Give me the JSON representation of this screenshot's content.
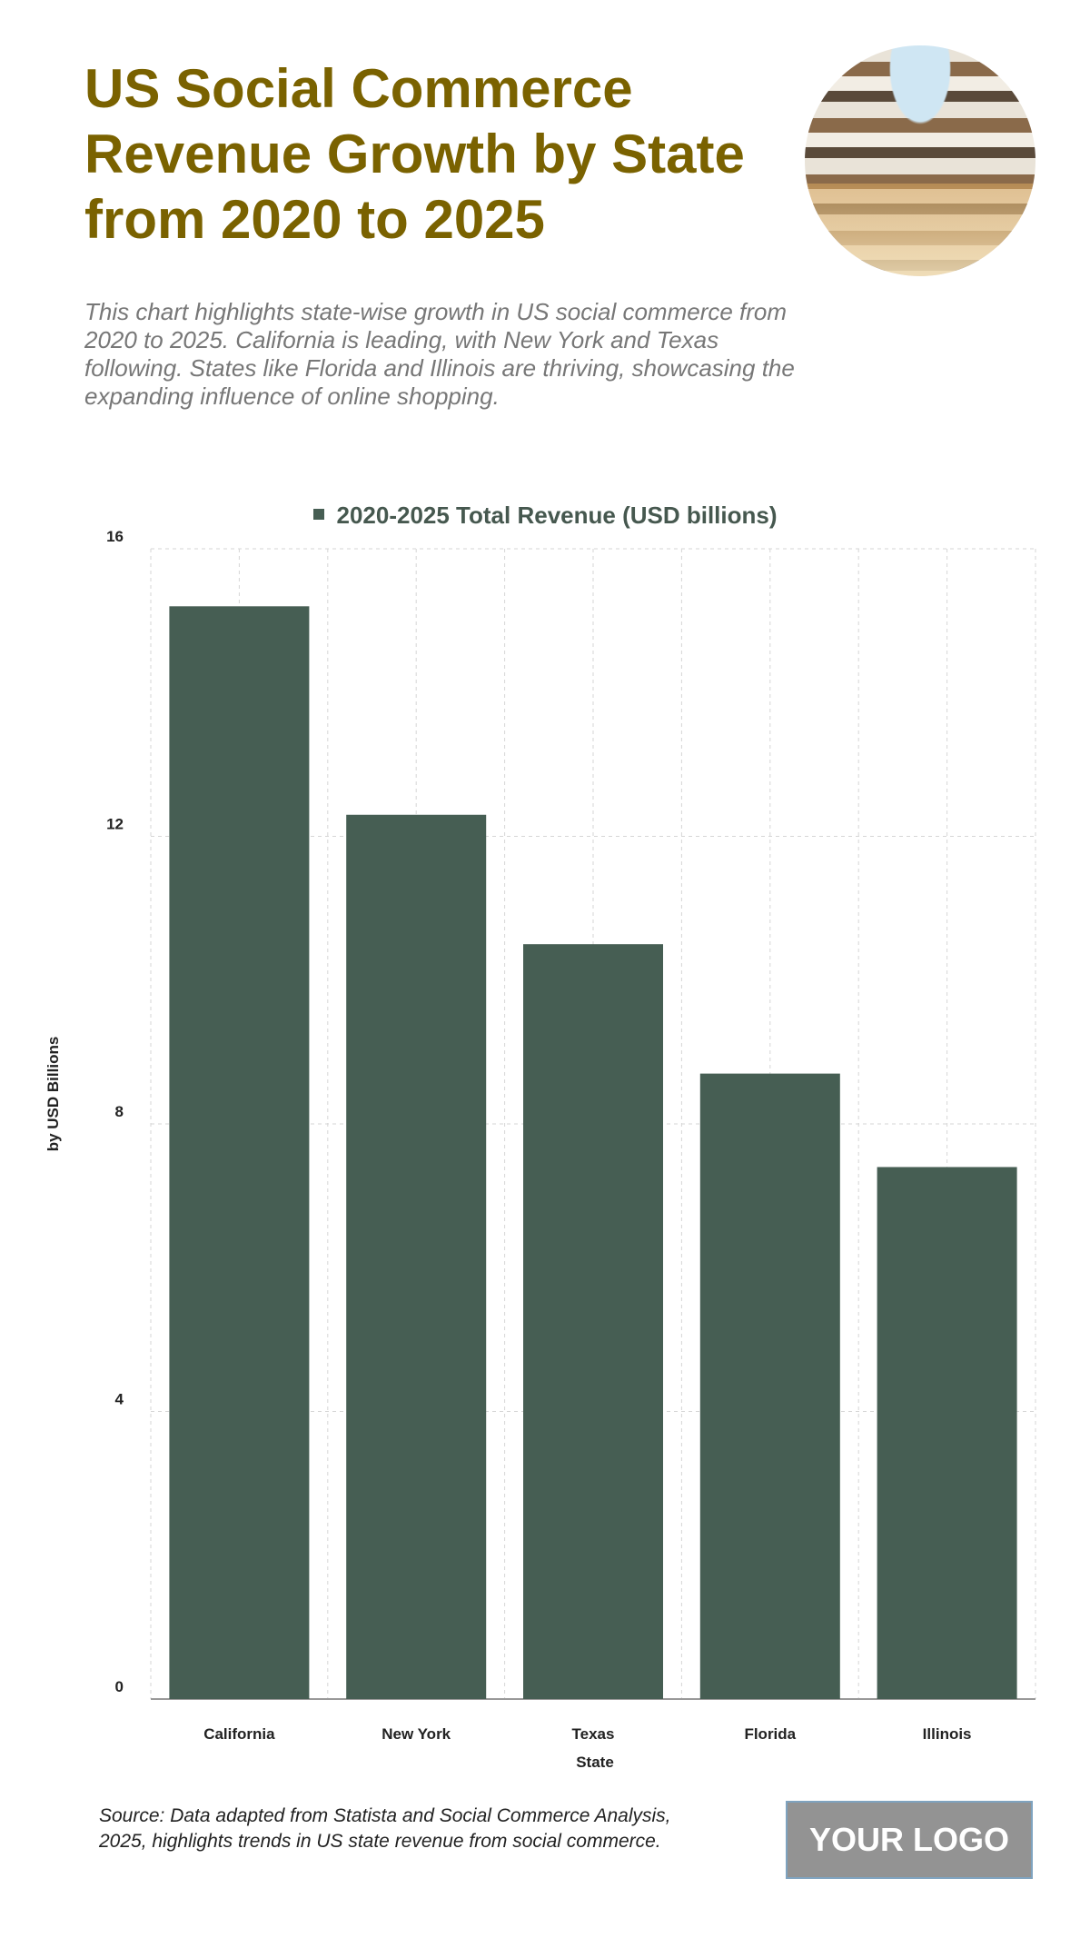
{
  "header": {
    "title": "US Social Commerce Revenue Growth by State from 2020 to 2025",
    "subtitle": "This chart highlights state-wise growth in US social commerce from 2020 to 2025. California is leading, with New York and Texas following. States like Florida and Illinois are thriving, showcasing the expanding influence of online shopping."
  },
  "chart_data": {
    "type": "bar",
    "categories": [
      "California",
      "New York",
      "Texas",
      "Florida",
      "Illinois"
    ],
    "series": [
      {
        "name": "2020-2025 Total Revenue (USD billions)",
        "values": [
          15.2,
          12.3,
          10.5,
          8.7,
          7.4
        ],
        "color": "#465e53"
      }
    ],
    "xlabel": "State",
    "ylabel": "by USD Billions",
    "ylim": [
      0,
      16
    ],
    "yticks": [
      0,
      4,
      8,
      12,
      16
    ],
    "grid": true,
    "legend": "top-center"
  },
  "footer": {
    "source": "Source: Data adapted from Statista and Social Commerce Analysis, 2025, highlights trends in US state revenue from social commerce.",
    "logo": "YOUR LOGO"
  }
}
